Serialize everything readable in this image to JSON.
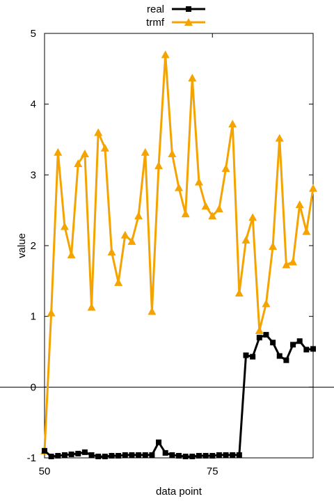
{
  "chart_data": {
    "type": "line",
    "title": "",
    "xlabel": "data point",
    "ylabel": "value",
    "xlim": [
      50,
      90
    ],
    "ylim": [
      -1,
      5
    ],
    "x_tick_labels": [
      "50",
      "75"
    ],
    "y_tick_labels": [
      "-1",
      "0",
      "1",
      "2",
      "3",
      "4",
      "5"
    ],
    "x_ticks": [
      50,
      75
    ],
    "y_ticks": [
      -1,
      0,
      1,
      2,
      3,
      4,
      5
    ],
    "zero_line": 0,
    "grid": false,
    "legend_position": "top-center",
    "x": [
      50,
      51,
      52,
      53,
      54,
      55,
      56,
      57,
      58,
      59,
      60,
      61,
      62,
      63,
      64,
      65,
      66,
      67,
      68,
      69,
      70,
      71,
      72,
      73,
      74,
      75,
      76,
      77,
      78,
      79,
      80,
      81,
      82,
      83,
      84,
      85,
      86,
      87,
      88,
      89,
      90
    ],
    "series": [
      {
        "name": "real",
        "color": "#000000",
        "marker": "square",
        "values": [
          -0.9,
          -0.98,
          -0.97,
          -0.96,
          -0.95,
          -0.94,
          -0.92,
          -0.96,
          -0.98,
          -0.98,
          -0.97,
          -0.97,
          -0.96,
          -0.96,
          -0.96,
          -0.96,
          -0.96,
          -0.78,
          -0.93,
          -0.96,
          -0.97,
          -0.98,
          -0.98,
          -0.97,
          -0.97,
          -0.97,
          -0.96,
          -0.96,
          -0.96,
          -0.96,
          0.45,
          0.43,
          0.7,
          0.74,
          0.63,
          0.44,
          0.38,
          0.6,
          0.65,
          0.53,
          0.54
        ]
      },
      {
        "name": "trmf",
        "color": "#f4a300",
        "marker": "triangle",
        "values": [
          -0.9,
          1.05,
          3.32,
          2.27,
          1.87,
          3.16,
          3.3,
          1.13,
          3.6,
          3.38,
          1.91,
          1.48,
          2.15,
          2.06,
          2.42,
          3.32,
          1.07,
          3.13,
          4.7,
          3.3,
          2.82,
          2.45,
          4.37,
          2.9,
          2.56,
          2.42,
          2.52,
          3.09,
          3.72,
          1.33,
          2.08,
          2.4,
          0.8,
          1.18,
          1.99,
          3.52,
          1.73,
          1.77,
          2.58,
          2.2,
          2.81
        ]
      }
    ]
  }
}
